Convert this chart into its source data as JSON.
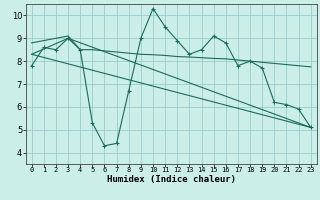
{
  "xlabel": "Humidex (Indice chaleur)",
  "background_color": "#cceee8",
  "line_color": "#1a6b5a",
  "grid_color": "#99cccc",
  "xlim": [
    -0.5,
    23.5
  ],
  "ylim": [
    3.5,
    10.5
  ],
  "xticks": [
    0,
    1,
    2,
    3,
    4,
    5,
    6,
    7,
    8,
    9,
    10,
    11,
    12,
    13,
    14,
    15,
    16,
    17,
    18,
    19,
    20,
    21,
    22,
    23
  ],
  "yticks": [
    4,
    5,
    6,
    7,
    8,
    9,
    10
  ],
  "series1_x": [
    0,
    1,
    2,
    3,
    4,
    5,
    6,
    7,
    8,
    9,
    10,
    11,
    12,
    13,
    14,
    15,
    16,
    17,
    18,
    19,
    20,
    21,
    22,
    23
  ],
  "series1_y": [
    7.8,
    8.6,
    8.5,
    9.0,
    8.5,
    5.3,
    4.3,
    4.4,
    6.7,
    9.0,
    10.3,
    9.5,
    8.9,
    8.3,
    8.5,
    9.1,
    8.8,
    7.8,
    8.0,
    7.7,
    6.2,
    6.1,
    5.9,
    5.1
  ],
  "series2_x": [
    0,
    1,
    2,
    3,
    4,
    5,
    6,
    7,
    8,
    9,
    10,
    11,
    12,
    13,
    14,
    15,
    16,
    17,
    18,
    19,
    20,
    21,
    22,
    23
  ],
  "series2_y": [
    8.8,
    8.9,
    9.0,
    9.1,
    8.5,
    8.5,
    8.45,
    8.4,
    8.35,
    8.3,
    8.28,
    8.25,
    8.2,
    8.18,
    8.15,
    8.12,
    8.1,
    8.05,
    8.0,
    7.95,
    7.9,
    7.85,
    7.8,
    7.75
  ],
  "series3_x": [
    0,
    3,
    23
  ],
  "series3_y": [
    8.3,
    9.0,
    5.1
  ],
  "series4_x": [
    0,
    23
  ],
  "series4_y": [
    8.3,
    5.1
  ]
}
